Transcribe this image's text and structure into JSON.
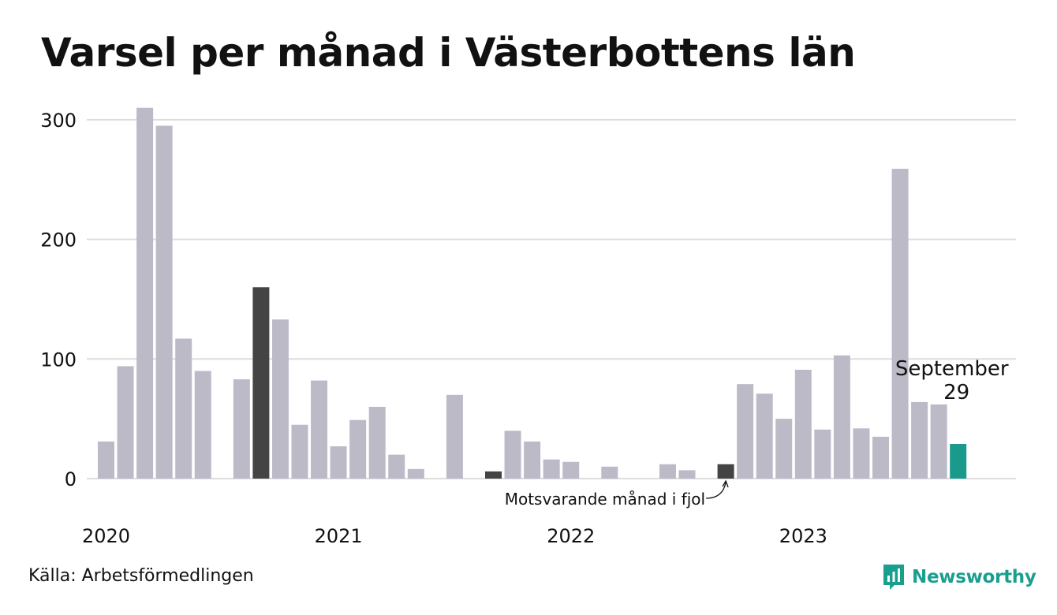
{
  "title": "Varsel per månad i Västerbottens län",
  "source": "Källa: Arbetsförmedlingen",
  "brand": "Newsworthy",
  "colors": {
    "bar": "#bdbac8",
    "highlight_last_year": "#444444",
    "current": "#1a9a8b",
    "grid": "#dddddd",
    "brand": "#1a9f8f"
  },
  "chart_data": {
    "type": "bar",
    "title": "Varsel per månad i Västerbottens län",
    "xlabel": "",
    "ylabel": "",
    "ylim": [
      0,
      310
    ],
    "yticks": [
      0,
      100,
      200,
      300
    ],
    "x_tick_labels": [
      {
        "label": "2020",
        "index": 0
      },
      {
        "label": "2021",
        "index": 12
      },
      {
        "label": "2022",
        "index": 24
      },
      {
        "label": "2023",
        "index": 36
      }
    ],
    "categories": [
      "2020-01",
      "2020-02",
      "2020-03",
      "2020-04",
      "2020-05",
      "2020-06",
      "2020-07",
      "2020-08",
      "2020-09",
      "2020-10",
      "2020-11",
      "2020-12",
      "2021-01",
      "2021-02",
      "2021-03",
      "2021-04",
      "2021-05",
      "2021-06",
      "2021-07",
      "2021-08",
      "2021-09",
      "2021-10",
      "2021-11",
      "2021-12",
      "2022-01",
      "2022-02",
      "2022-03",
      "2022-04",
      "2022-05",
      "2022-06",
      "2022-07",
      "2022-08",
      "2022-09",
      "2022-10",
      "2022-11",
      "2022-12",
      "2023-01",
      "2023-02",
      "2023-03",
      "2023-04",
      "2023-05",
      "2023-06",
      "2023-07",
      "2023-08",
      "2023-09"
    ],
    "values": [
      31,
      94,
      310,
      295,
      117,
      90,
      0,
      83,
      160,
      133,
      45,
      82,
      27,
      49,
      60,
      20,
      8,
      0,
      70,
      0,
      6,
      40,
      31,
      16,
      14,
      0,
      10,
      0,
      0,
      12,
      7,
      0,
      12,
      79,
      71,
      50,
      91,
      41,
      103,
      42,
      35,
      259,
      64,
      62,
      29
    ],
    "highlights": [
      {
        "index": 8,
        "role": "last_year"
      },
      {
        "index": 20,
        "role": "last_year"
      },
      {
        "index": 32,
        "role": "last_year"
      },
      {
        "index": 44,
        "role": "current"
      }
    ],
    "annotations": {
      "current_label": "September",
      "current_value": "29",
      "last_year_label": "Motsvarande månad i fjol"
    }
  }
}
